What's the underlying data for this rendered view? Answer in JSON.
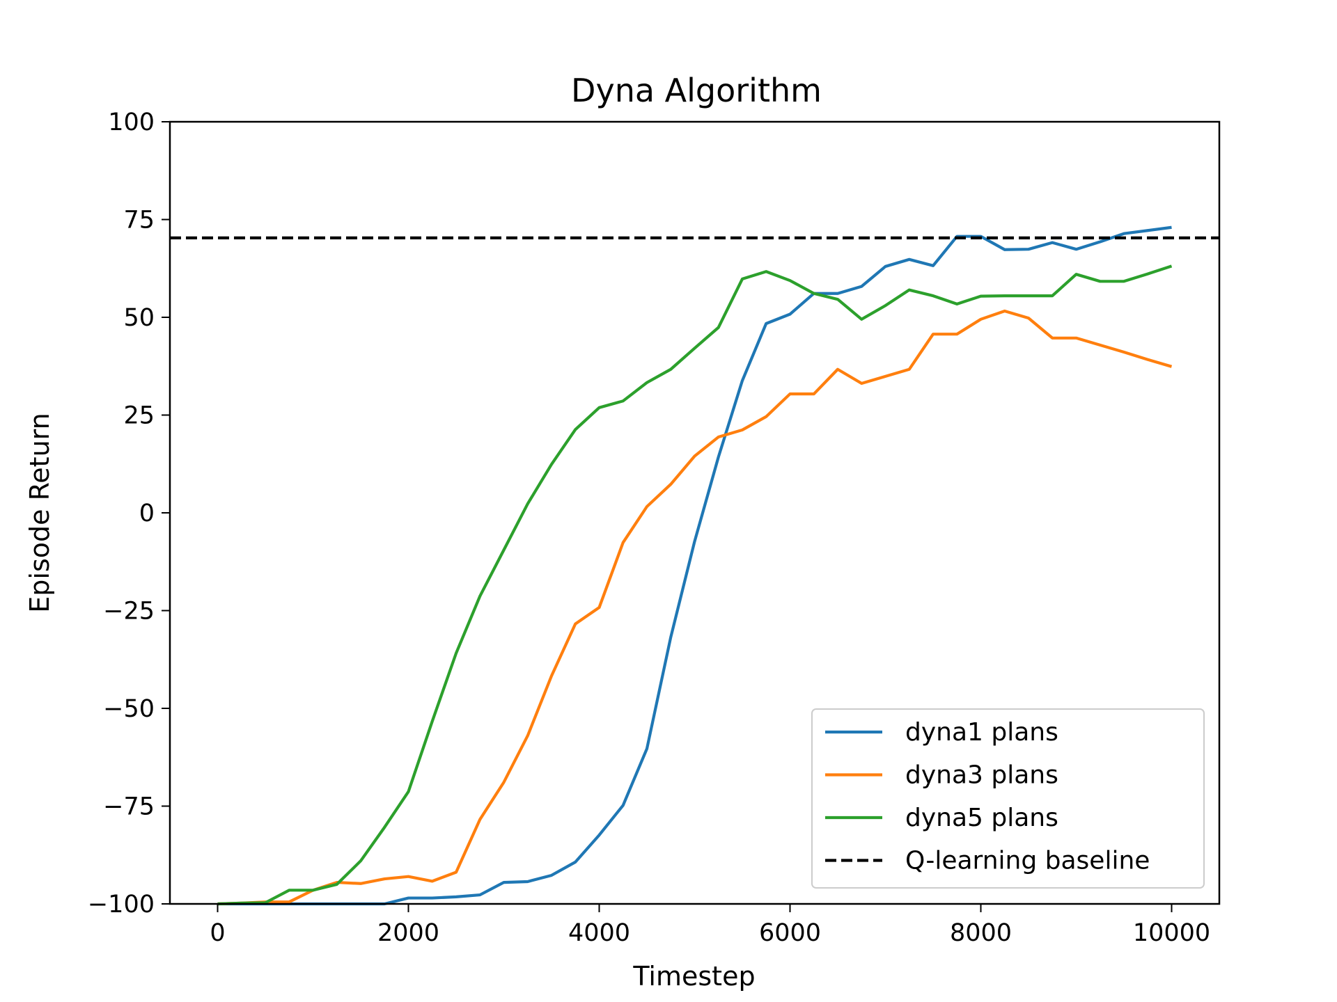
{
  "chart_data": {
    "type": "line",
    "title": "Dyna Algorithm",
    "xlabel": "Timestep",
    "ylabel": "Episode Return",
    "xlim": [
      -500,
      10500
    ],
    "ylim": [
      -100,
      100
    ],
    "xticks": [
      0,
      2000,
      4000,
      6000,
      8000,
      10000
    ],
    "xtick_labels": [
      "0",
      "2000",
      "4000",
      "6000",
      "8000",
      "10000"
    ],
    "yticks": [
      -100,
      -75,
      -50,
      -25,
      0,
      25,
      50,
      75,
      100
    ],
    "ytick_labels": [
      "−100",
      "−75",
      "−50",
      "−25",
      "0",
      "25",
      "50",
      "75",
      "100"
    ],
    "grid": false,
    "legend_position": "lower-right",
    "x": [
      0,
      250,
      500,
      750,
      1000,
      1250,
      1500,
      1750,
      2000,
      2250,
      2500,
      2750,
      3000,
      3250,
      3500,
      3750,
      4000,
      4250,
      4500,
      4750,
      5000,
      5250,
      5500,
      5750,
      6000,
      6250,
      6500,
      6750,
      7000,
      7250,
      7500,
      7750,
      8000,
      8250,
      8500,
      8750,
      9000,
      9250,
      9500,
      9750,
      10000
    ],
    "series": [
      {
        "name": "dyna1 plans",
        "color": "#1f77b4",
        "values": [
          -100,
          -100,
          -100,
          -100,
          -100,
          -100,
          -100,
          -100,
          -98.5,
          -98.5,
          -98.2,
          -97.7,
          -94.5,
          -94.3,
          -92.7,
          -89.3,
          -82.4,
          -74.8,
          -60.3,
          -31.8,
          -7.3,
          14.3,
          33.8,
          48.4,
          50.8,
          56.1,
          56.1,
          57.9,
          63.0,
          64.8,
          63.2,
          70.7,
          70.7,
          67.3,
          67.4,
          69.1,
          67.4,
          69.3,
          71.4,
          72.2,
          73.0
        ],
        "style": "solid"
      },
      {
        "name": "dyna3 plans",
        "color": "#ff7f0e",
        "values": [
          -100,
          -99.8,
          -99.5,
          -99.5,
          -96.5,
          -94.5,
          -94.8,
          -93.6,
          -93.0,
          -94.2,
          -91.9,
          -78.4,
          -68.9,
          -57.0,
          -41.7,
          -28.4,
          -24.2,
          -7.6,
          1.6,
          7.3,
          14.5,
          19.4,
          21.2,
          24.6,
          30.4,
          30.4,
          36.7,
          33.1,
          34.9,
          36.7,
          45.7,
          45.7,
          49.5,
          51.6,
          49.8,
          44.7,
          44.7,
          42.9,
          41.1,
          39.2,
          37.4
        ],
        "style": "solid"
      },
      {
        "name": "dyna5 plans",
        "color": "#2ca02c",
        "values": [
          -100,
          -99.8,
          -99.7,
          -96.5,
          -96.5,
          -95.0,
          -89.0,
          -80.4,
          -71.3,
          -53.3,
          -35.9,
          -21.3,
          -9.5,
          2.3,
          12.4,
          21.3,
          26.9,
          28.6,
          33.3,
          36.7,
          42.1,
          47.4,
          59.8,
          61.7,
          59.4,
          56.1,
          54.6,
          49.5,
          53.0,
          57.0,
          55.5,
          53.4,
          55.4,
          55.5,
          55.5,
          55.5,
          61.0,
          59.2,
          59.2,
          61.1,
          63.1
        ],
        "style": "solid"
      },
      {
        "name": "Q-learning baseline",
        "color": "#000000",
        "constant": 70.3,
        "style": "dashed"
      }
    ]
  }
}
